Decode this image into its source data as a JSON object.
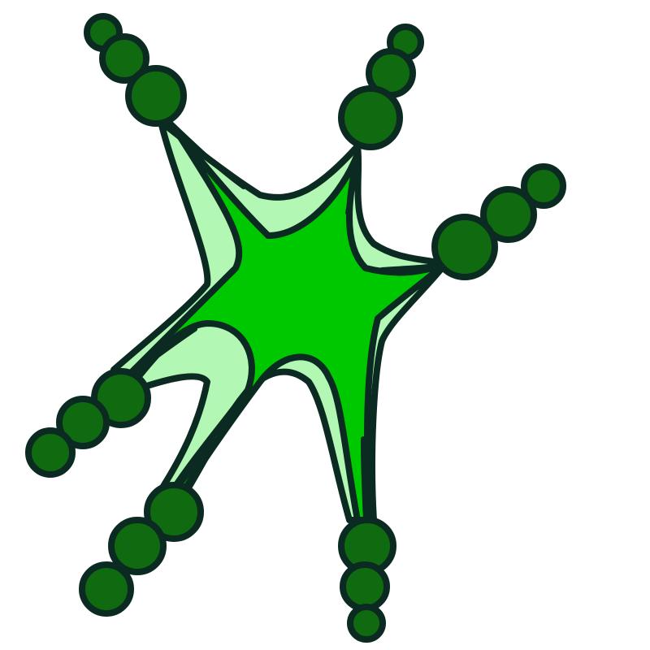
{
  "image": {
    "subject": "star-cell-cartoon",
    "background_color": "#ffffff",
    "colors": {
      "outline": "#0b2a22",
      "halo_fill": "#b3f7b5",
      "core_fill": "#00c800",
      "bead_fill": "#0f6a10"
    },
    "arms": [
      {
        "direction": "upper-left",
        "bead_count": 3
      },
      {
        "direction": "upper-right",
        "bead_count": 3
      },
      {
        "direction": "right",
        "bead_count": 3
      },
      {
        "direction": "lower-left",
        "bead_count": 3
      },
      {
        "direction": "bottom-left",
        "bead_count": 3
      },
      {
        "direction": "bottom",
        "bead_count": 3
      }
    ]
  }
}
